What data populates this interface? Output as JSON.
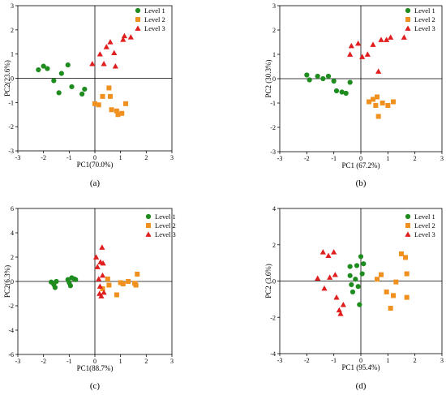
{
  "chart_data": [
    {
      "type": "scatter",
      "caption": "(a)",
      "xlabel": "PC1(70.0%)",
      "ylabel": "PC2(23.6%)",
      "xlim": [
        -3,
        3
      ],
      "ylim": [
        -3,
        3
      ],
      "xticks": [
        -3,
        -2,
        -1,
        0,
        1,
        2,
        3
      ],
      "yticks": [
        -3,
        -2,
        -1,
        0,
        1,
        2,
        3
      ],
      "legend_position": "top-right",
      "series": [
        {
          "name": "Level 1",
          "color": "#1e8c1e",
          "marker": "circle",
          "points": [
            [
              -2.2,
              0.35
            ],
            [
              -2.0,
              0.5
            ],
            [
              -1.85,
              0.4
            ],
            [
              -1.6,
              -0.1
            ],
            [
              -1.4,
              -0.6
            ],
            [
              -1.3,
              0.2
            ],
            [
              -1.05,
              0.55
            ],
            [
              -0.9,
              -0.35
            ],
            [
              -0.5,
              -0.65
            ],
            [
              -0.4,
              -0.45
            ]
          ]
        },
        {
          "name": "Level 2",
          "color": "#f0901e",
          "marker": "square",
          "points": [
            [
              0.0,
              -1.05
            ],
            [
              0.15,
              -1.1
            ],
            [
              0.3,
              -0.75
            ],
            [
              0.55,
              -0.4
            ],
            [
              0.6,
              -0.75
            ],
            [
              0.65,
              -1.3
            ],
            [
              0.85,
              -1.35
            ],
            [
              0.9,
              -1.5
            ],
            [
              1.05,
              -1.45
            ],
            [
              1.2,
              -1.05
            ]
          ]
        },
        {
          "name": "Level 3",
          "color": "#e01e1e",
          "marker": "triangle",
          "points": [
            [
              -0.1,
              0.6
            ],
            [
              0.2,
              1.0
            ],
            [
              0.35,
              0.6
            ],
            [
              0.45,
              1.3
            ],
            [
              0.6,
              1.5
            ],
            [
              0.75,
              1.05
            ],
            [
              0.8,
              0.5
            ],
            [
              1.1,
              1.6
            ],
            [
              1.15,
              1.75
            ],
            [
              1.4,
              1.7
            ]
          ]
        }
      ]
    },
    {
      "type": "scatter",
      "caption": "(b)",
      "xlabel": "PC1 (67.2%)",
      "ylabel": "PC2 (30.3%)",
      "xlim": [
        -3,
        3
      ],
      "ylim": [
        -3,
        3
      ],
      "xticks": [
        -3,
        -2,
        -1,
        0,
        1,
        2,
        3
      ],
      "yticks": [
        -3,
        -2,
        -1,
        0,
        1,
        2,
        3
      ],
      "legend_position": "top-right",
      "series": [
        {
          "name": "Level 1",
          "color": "#1e8c1e",
          "marker": "circle",
          "points": [
            [
              -2.0,
              0.15
            ],
            [
              -1.9,
              -0.05
            ],
            [
              -1.6,
              0.1
            ],
            [
              -1.4,
              0.0
            ],
            [
              -1.2,
              0.1
            ],
            [
              -1.0,
              -0.1
            ],
            [
              -0.9,
              -0.5
            ],
            [
              -0.7,
              -0.55
            ],
            [
              -0.55,
              -0.6
            ],
            [
              -0.4,
              -0.15
            ]
          ]
        },
        {
          "name": "Level 2",
          "color": "#f0901e",
          "marker": "square",
          "points": [
            [
              0.3,
              -0.95
            ],
            [
              0.45,
              -0.85
            ],
            [
              0.55,
              -1.1
            ],
            [
              0.6,
              -0.75
            ],
            [
              0.65,
              -1.55
            ],
            [
              0.8,
              -1.0
            ],
            [
              1.0,
              -1.1
            ],
            [
              1.2,
              -0.95
            ]
          ]
        },
        {
          "name": "Level 3",
          "color": "#e01e1e",
          "marker": "triangle",
          "points": [
            [
              -0.4,
              1.0
            ],
            [
              -0.35,
              1.35
            ],
            [
              -0.1,
              1.45
            ],
            [
              0.05,
              0.9
            ],
            [
              0.25,
              1.0
            ],
            [
              0.45,
              1.4
            ],
            [
              0.65,
              0.3
            ],
            [
              0.75,
              1.6
            ],
            [
              0.95,
              1.6
            ],
            [
              1.1,
              1.7
            ],
            [
              1.6,
              1.7
            ]
          ]
        }
      ]
    },
    {
      "type": "scatter",
      "caption": "(c)",
      "xlabel": "PC1(88.7%)",
      "ylabel": "PC2(6.3%)",
      "xlim": [
        -3,
        3
      ],
      "ylim": [
        -6,
        6
      ],
      "xticks": [
        -3,
        -2,
        -1,
        0,
        1,
        2,
        3
      ],
      "yticks": [
        -6,
        -4,
        -2,
        0,
        2,
        4,
        6
      ],
      "legend_position": "top-right",
      "series": [
        {
          "name": "Level 1",
          "color": "#1e8c1e",
          "marker": "circle",
          "points": [
            [
              -1.7,
              -0.05
            ],
            [
              -1.6,
              -0.25
            ],
            [
              -1.55,
              -0.5
            ],
            [
              -1.5,
              0.0
            ],
            [
              -1.05,
              0.15
            ],
            [
              -1.0,
              -0.1
            ],
            [
              -0.95,
              -0.35
            ],
            [
              -0.9,
              0.3
            ],
            [
              -0.8,
              0.2
            ],
            [
              -0.75,
              0.15
            ]
          ]
        },
        {
          "name": "Level 2",
          "color": "#f0901e",
          "marker": "square",
          "points": [
            [
              0.3,
              -0.6
            ],
            [
              0.5,
              0.2
            ],
            [
              0.55,
              -0.3
            ],
            [
              0.85,
              -1.1
            ],
            [
              1.0,
              -0.1
            ],
            [
              1.1,
              -0.2
            ],
            [
              1.3,
              0.0
            ],
            [
              1.55,
              -0.15
            ],
            [
              1.6,
              -0.3
            ],
            [
              1.65,
              0.6
            ]
          ]
        },
        {
          "name": "Level 3",
          "color": "#e01e1e",
          "marker": "triangle",
          "points": [
            [
              0.05,
              2.0
            ],
            [
              0.1,
              1.2
            ],
            [
              0.15,
              0.2
            ],
            [
              0.18,
              -1.0
            ],
            [
              0.2,
              -0.4
            ],
            [
              0.22,
              1.6
            ],
            [
              0.25,
              -1.2
            ],
            [
              0.28,
              2.8
            ],
            [
              0.3,
              0.5
            ],
            [
              0.32,
              1.5
            ],
            [
              0.35,
              -0.9
            ]
          ]
        }
      ]
    },
    {
      "type": "scatter",
      "caption": "(d)",
      "xlabel": "PC1 (95.4%)",
      "ylabel": "PC2 (3.6%)",
      "xlim": [
        -3,
        3
      ],
      "ylim": [
        -4,
        4
      ],
      "xticks": [
        -3,
        -2,
        -1,
        0,
        1,
        2,
        3
      ],
      "yticks": [
        -4,
        -2,
        0,
        2,
        4
      ],
      "legend_position": "top-right",
      "series": [
        {
          "name": "Level 1",
          "color": "#1e8c1e",
          "marker": "circle",
          "points": [
            [
              -0.4,
              0.8
            ],
            [
              -0.4,
              0.3
            ],
            [
              -0.35,
              -0.2
            ],
            [
              -0.3,
              -0.6
            ],
            [
              -0.2,
              0.1
            ],
            [
              -0.15,
              0.85
            ],
            [
              -0.1,
              -0.3
            ],
            [
              -0.05,
              -1.3
            ],
            [
              0.0,
              1.35
            ],
            [
              0.1,
              0.95
            ],
            [
              0.05,
              0.4
            ]
          ]
        },
        {
          "name": "Level 2",
          "color": "#f0901e",
          "marker": "square",
          "points": [
            [
              0.6,
              0.1
            ],
            [
              0.75,
              0.35
            ],
            [
              0.95,
              -0.6
            ],
            [
              1.1,
              -1.5
            ],
            [
              1.2,
              -0.8
            ],
            [
              1.3,
              -0.05
            ],
            [
              1.5,
              1.5
            ],
            [
              1.65,
              1.3
            ],
            [
              1.7,
              -0.9
            ],
            [
              1.7,
              0.4
            ]
          ]
        },
        {
          "name": "Level 3",
          "color": "#e01e1e",
          "marker": "triangle",
          "points": [
            [
              -1.6,
              0.15
            ],
            [
              -1.4,
              1.6
            ],
            [
              -1.35,
              -0.4
            ],
            [
              -1.2,
              1.4
            ],
            [
              -1.15,
              0.2
            ],
            [
              -1.0,
              1.6
            ],
            [
              -0.95,
              0.35
            ],
            [
              -0.9,
              -0.9
            ],
            [
              -0.8,
              -1.6
            ],
            [
              -0.75,
              -1.8
            ],
            [
              -0.65,
              -1.3
            ]
          ]
        }
      ]
    }
  ]
}
